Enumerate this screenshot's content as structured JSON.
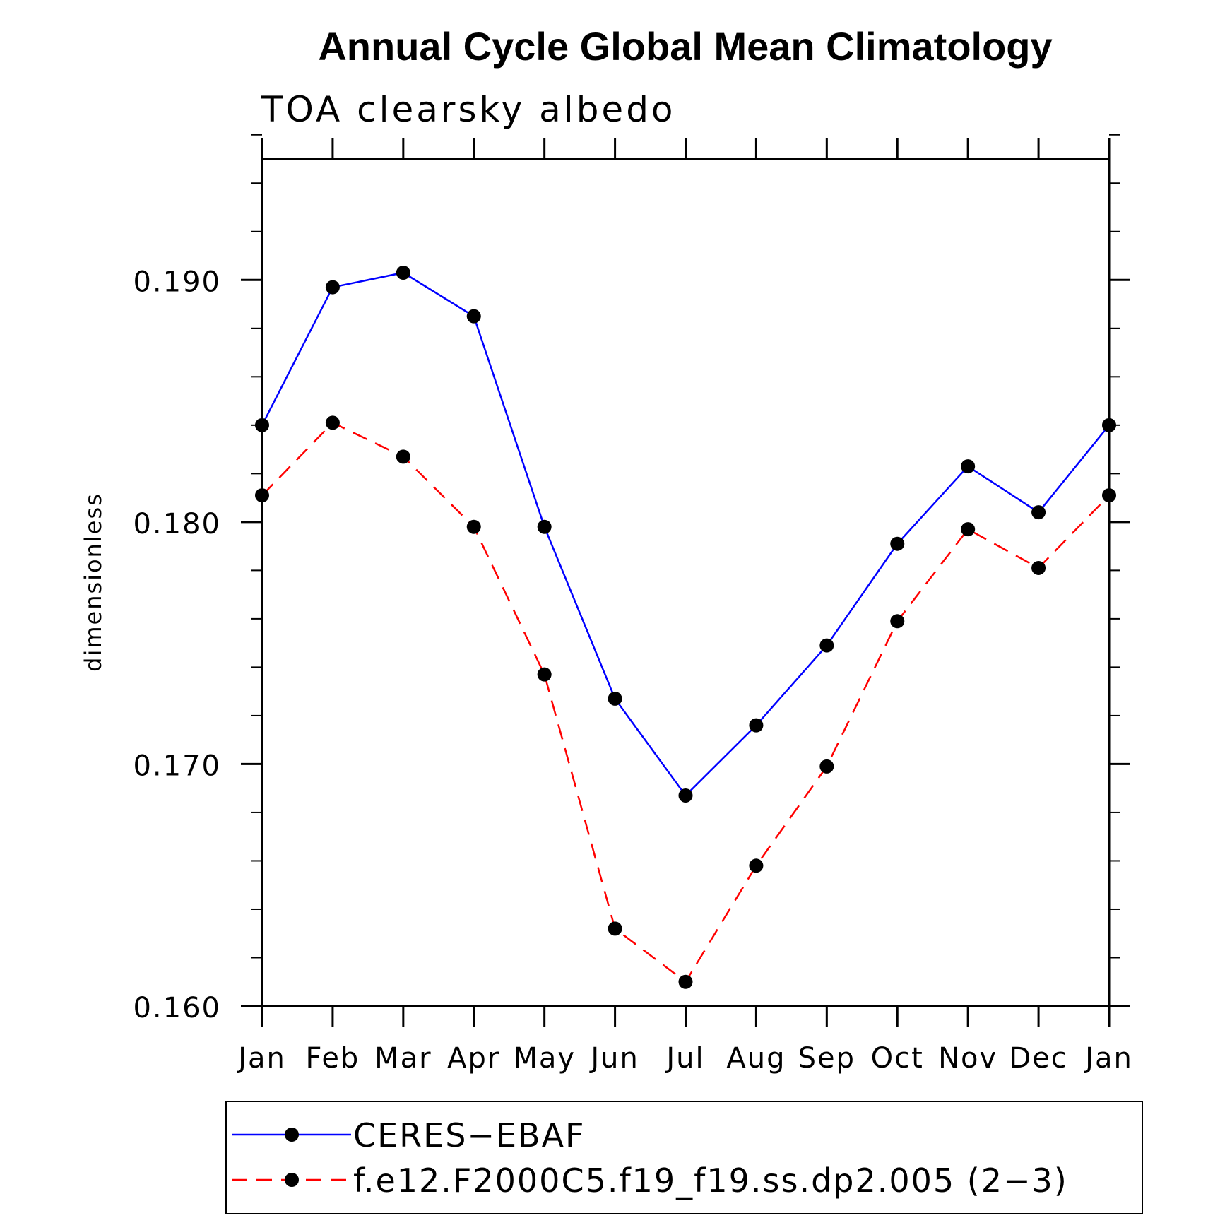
{
  "chart_data": {
    "type": "line",
    "title": "Annual Cycle Global Mean Climatology",
    "subtitle": "TOA clearsky albedo",
    "xlabel": "",
    "ylabel": "dimensionless",
    "categories": [
      "Jan",
      "Feb",
      "Mar",
      "Apr",
      "May",
      "Jun",
      "Jul",
      "Aug",
      "Sep",
      "Oct",
      "Nov",
      "Dec",
      "Jan"
    ],
    "ylim": [
      0.16,
      0.195
    ],
    "y_ticks_major": [
      0.16,
      0.17,
      0.18,
      0.19
    ],
    "y_tick_labels": [
      "0.160",
      "0.170",
      "0.180",
      "0.190"
    ],
    "y_minor_step": 0.002,
    "grid": false,
    "legend_position": "bottom",
    "series": [
      {
        "name": "CERES−EBAF",
        "color": "#0000ff",
        "line_style": "solid",
        "marker": "filled-circle",
        "values": [
          0.184,
          0.1897,
          0.1903,
          0.1885,
          0.1798,
          0.1727,
          0.1687,
          0.1716,
          0.1749,
          0.1791,
          0.1823,
          0.1804,
          0.184
        ]
      },
      {
        "name": "f.e12.F2000C5.f19_f19.ss.dp2.005 (2−3)",
        "color": "#ff0000",
        "line_style": "dashed",
        "marker": "filled-circle",
        "values": [
          0.1811,
          0.1841,
          0.1827,
          0.1798,
          0.1737,
          0.1632,
          0.161,
          0.1658,
          0.1699,
          0.1759,
          0.1797,
          0.1781,
          0.1811
        ]
      }
    ]
  }
}
